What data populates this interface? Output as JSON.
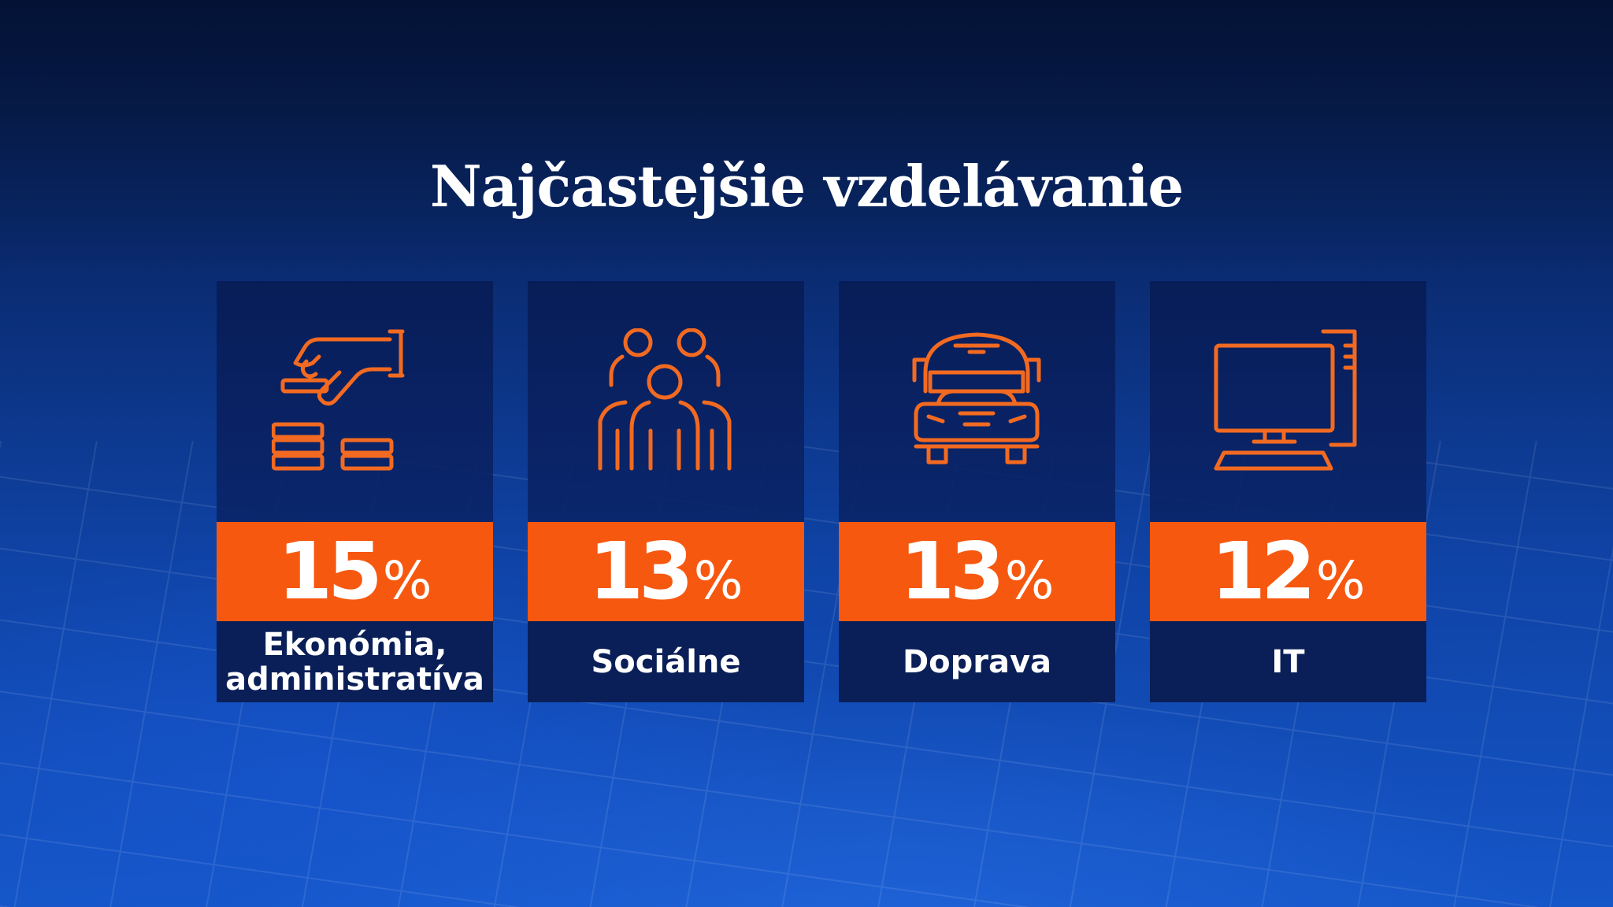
{
  "title": "Najčastejšie vzdelávanie",
  "colors": {
    "accent": "#f7580f",
    "icon": "#f26a21",
    "card_dark": "#0a1f57",
    "background": "#0f43a6"
  },
  "cards": [
    {
      "icon": "coins-hand-icon",
      "value": "15",
      "unit": "%",
      "label": "Ekonómia,\nadministratíva"
    },
    {
      "icon": "people-group-icon",
      "value": "13",
      "unit": "%",
      "label": "Sociálne"
    },
    {
      "icon": "bus-icon",
      "value": "13",
      "unit": "%",
      "label": "Doprava"
    },
    {
      "icon": "computer-icon",
      "value": "12",
      "unit": "%",
      "label": "IT"
    }
  ],
  "chart_data": {
    "type": "bar",
    "title": "Najčastejšie vzdelávanie",
    "categories": [
      "Ekonómia, administratíva",
      "Sociálne",
      "Doprava",
      "IT"
    ],
    "values": [
      15,
      13,
      13,
      12
    ],
    "unit": "%"
  }
}
